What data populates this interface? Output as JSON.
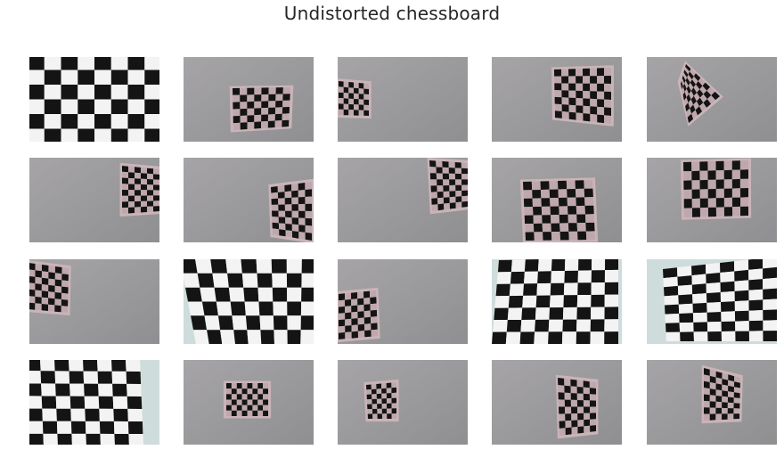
{
  "figure": {
    "title": "Undistorted chessboard",
    "rows": 4,
    "cols": 5
  },
  "images": [
    {
      "id": 1,
      "scene": "closeup-flat"
    },
    {
      "id": 2,
      "scene": "board-on-wall"
    },
    {
      "id": 3,
      "scene": "board-on-wall"
    },
    {
      "id": 4,
      "scene": "board-on-wall"
    },
    {
      "id": 5,
      "scene": "board-on-wall-rotated"
    },
    {
      "id": 6,
      "scene": "board-on-wall"
    },
    {
      "id": 7,
      "scene": "board-on-wall"
    },
    {
      "id": 8,
      "scene": "board-on-wall"
    },
    {
      "id": 9,
      "scene": "board-on-wall"
    },
    {
      "id": 10,
      "scene": "board-on-wall"
    },
    {
      "id": 11,
      "scene": "board-on-wall"
    },
    {
      "id": 12,
      "scene": "closeup-perspective"
    },
    {
      "id": 13,
      "scene": "board-on-wall"
    },
    {
      "id": 14,
      "scene": "closeup-perspective"
    },
    {
      "id": 15,
      "scene": "closeup-perspective"
    },
    {
      "id": 16,
      "scene": "closeup-perspective"
    },
    {
      "id": 17,
      "scene": "board-on-wall"
    },
    {
      "id": 18,
      "scene": "board-on-wall"
    },
    {
      "id": 19,
      "scene": "board-on-wall"
    },
    {
      "id": 20,
      "scene": "board-on-wall"
    }
  ],
  "colors": {
    "wall": "#8f8f91",
    "wall_light": "#a6a4a6",
    "board_frame": "#c9b4b8",
    "dark_square": "#141414",
    "light_square_closeup": "#f3f3f3",
    "light_square_wall": "#bfa8ad",
    "backdrop_light": "#cfdcdc"
  }
}
